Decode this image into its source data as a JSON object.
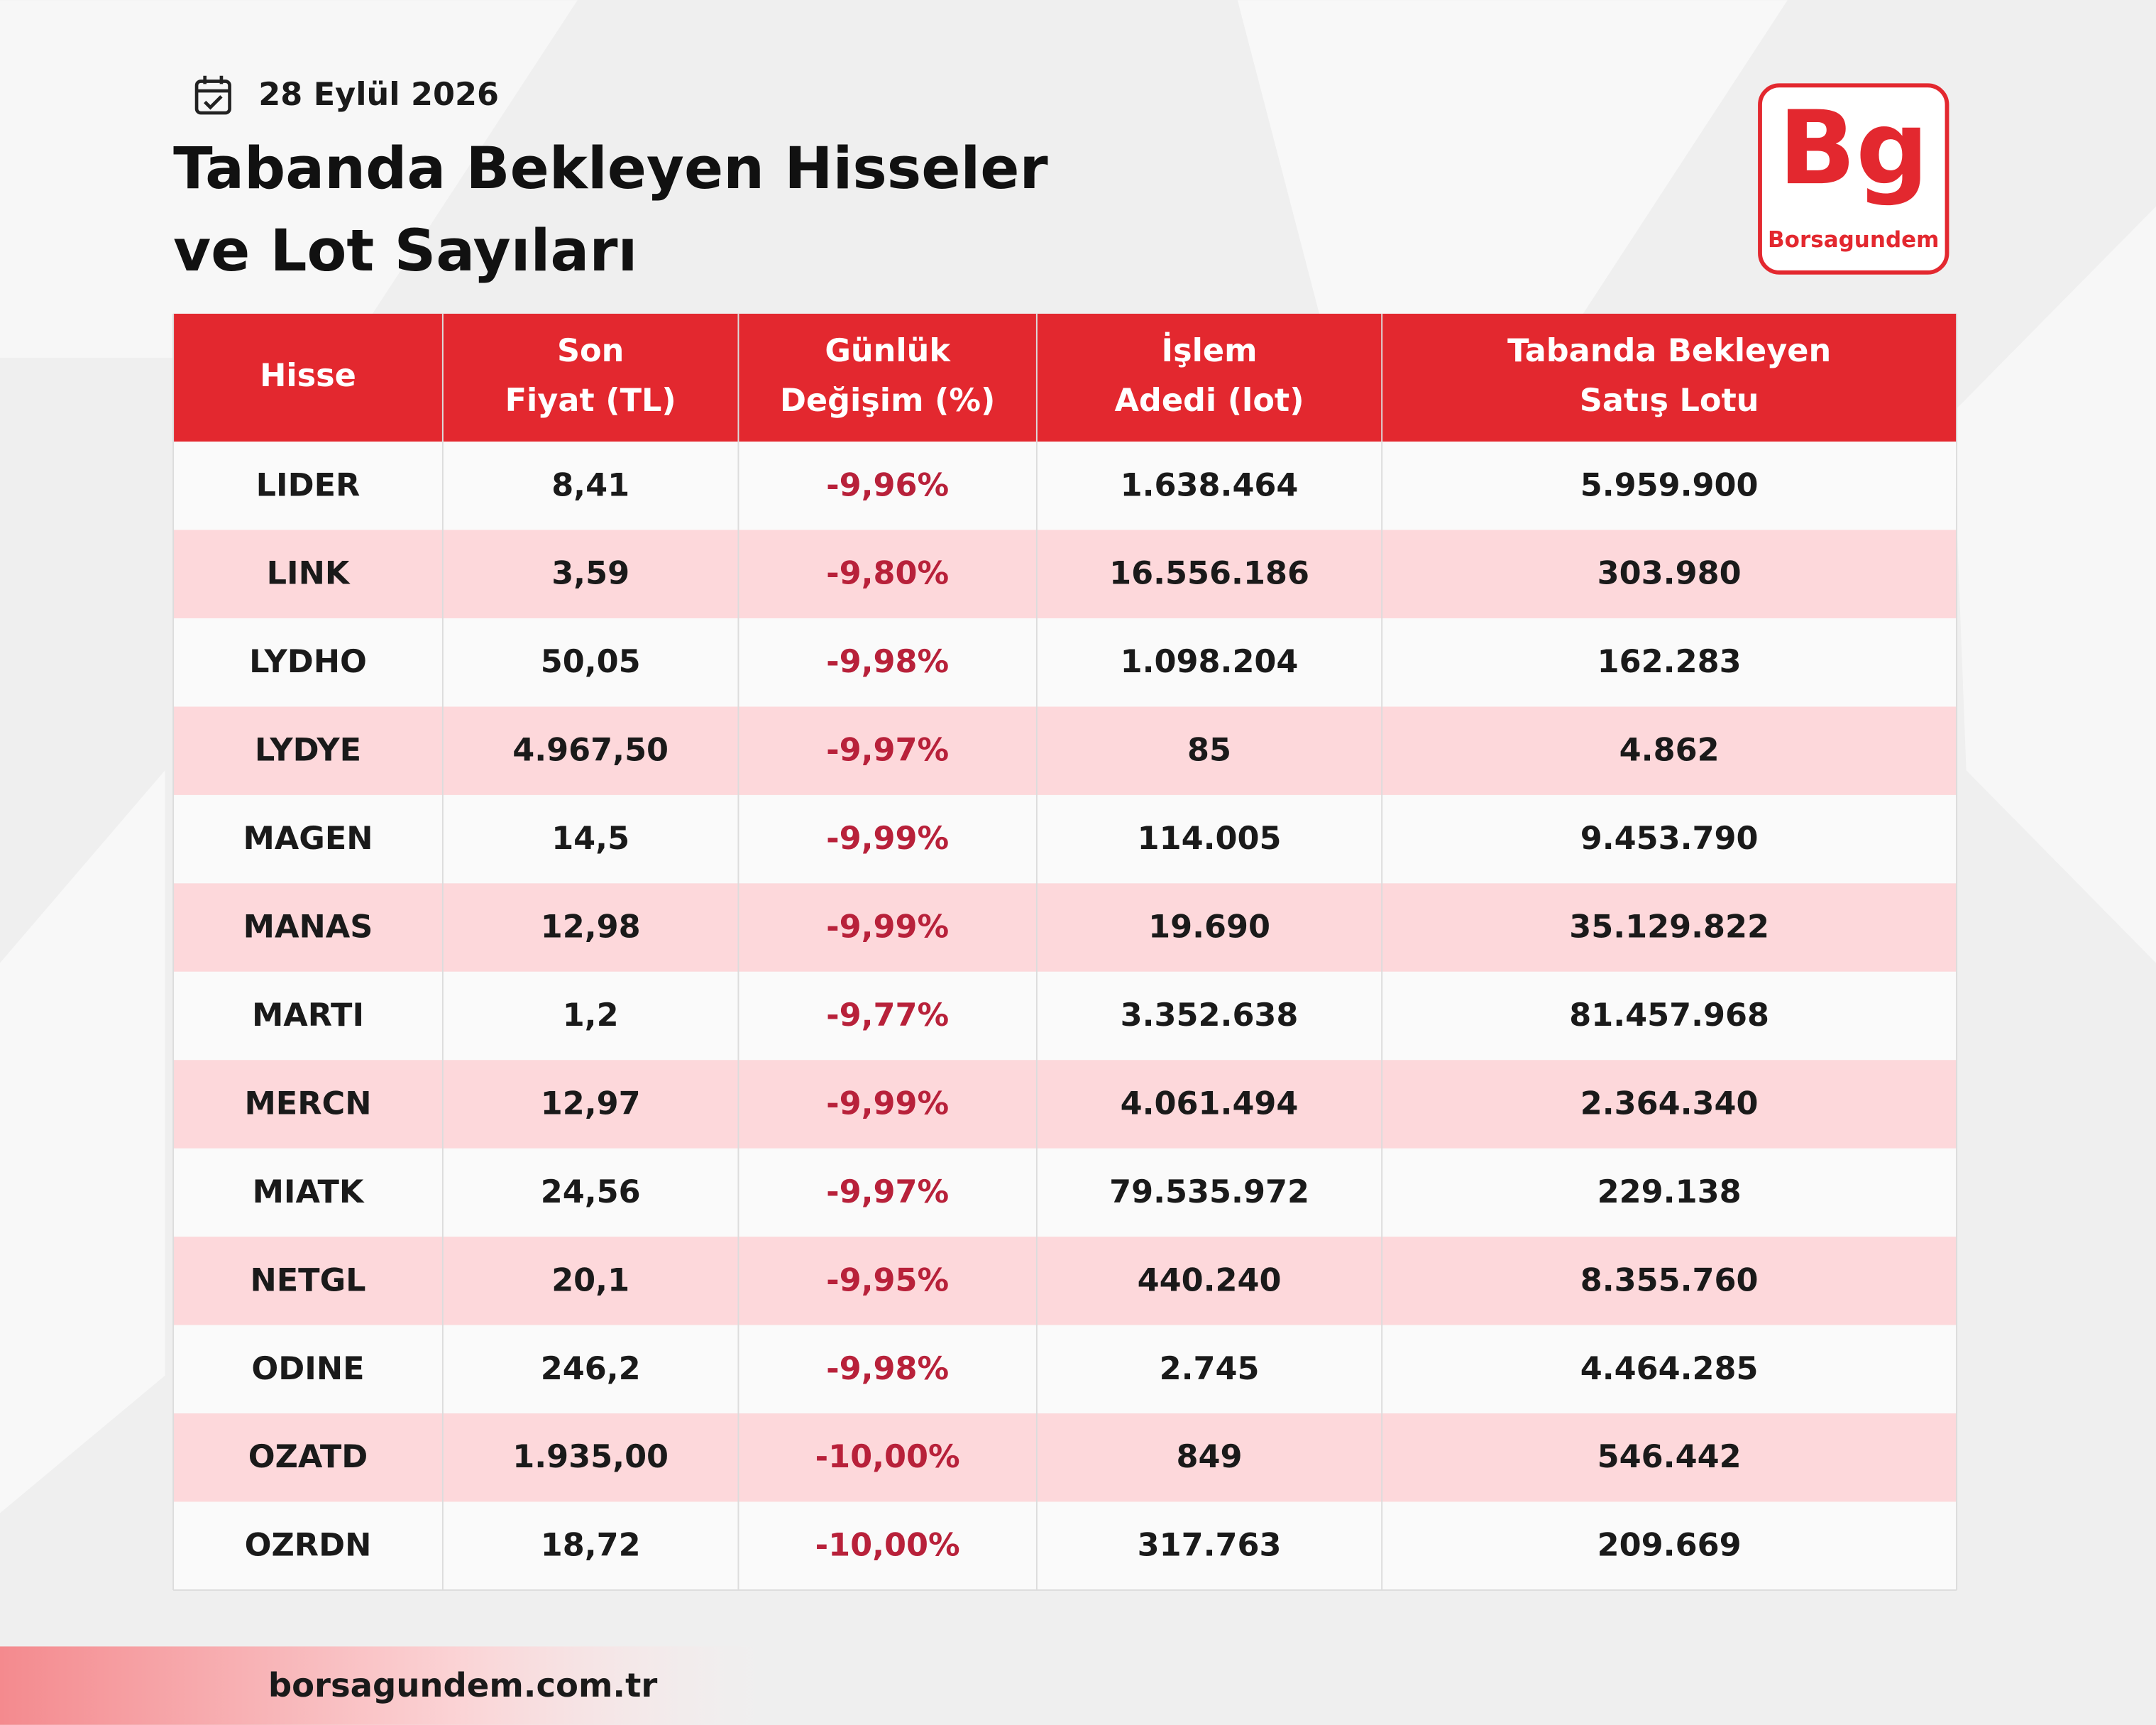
{
  "header": {
    "date": "28 Eylül 2026",
    "title_lines": [
      "Tabanda Bekleyen Hisseler",
      "ve Lot Sayıları"
    ]
  },
  "logo": {
    "mark": "Bg",
    "name": "Borsagundem"
  },
  "table": {
    "columns": [
      [
        "Hisse"
      ],
      [
        "Son",
        "Fiyat (TL)"
      ],
      [
        "Günlük",
        "Değişim (%)"
      ],
      [
        "İşlem",
        "Adedi (lot)"
      ],
      [
        "Tabanda Bekleyen",
        "Satış Lotu"
      ]
    ],
    "rows": [
      [
        "LIDER",
        "8,41",
        "-9,96%",
        "1.638.464",
        "5.959.900"
      ],
      [
        "LINK",
        "3,59",
        "-9,80%",
        "16.556.186",
        "303.980"
      ],
      [
        "LYDHO",
        "50,05",
        "-9,98%",
        "1.098.204",
        "162.283"
      ],
      [
        "LYDYE",
        "4.967,50",
        "-9,97%",
        "85",
        "4.862"
      ],
      [
        "MAGEN",
        "14,5",
        "-9,99%",
        "114.005",
        "9.453.790"
      ],
      [
        "MANAS",
        "12,98",
        "-9,99%",
        "19.690",
        "35.129.822"
      ],
      [
        "MARTI",
        "1,2",
        "-9,77%",
        "3.352.638",
        "81.457.968"
      ],
      [
        "MERCN",
        "12,97",
        "-9,99%",
        "4.061.494",
        "2.364.340"
      ],
      [
        "MIATK",
        "24,56",
        "-9,97%",
        "79.535.972",
        "229.138"
      ],
      [
        "NETGL",
        "20,1",
        "-9,95%",
        "440.240",
        "8.355.760"
      ],
      [
        "ODINE",
        "246,2",
        "-9,98%",
        "2.745",
        "4.464.285"
      ],
      [
        "OZATD",
        "1.935,00",
        "-10,00%",
        "849",
        "546.442"
      ],
      [
        "OZRDN",
        "18,72",
        "-10,00%",
        "317.763",
        "209.669"
      ]
    ]
  },
  "footer": {
    "url": "borsagundem.com.tr"
  }
}
